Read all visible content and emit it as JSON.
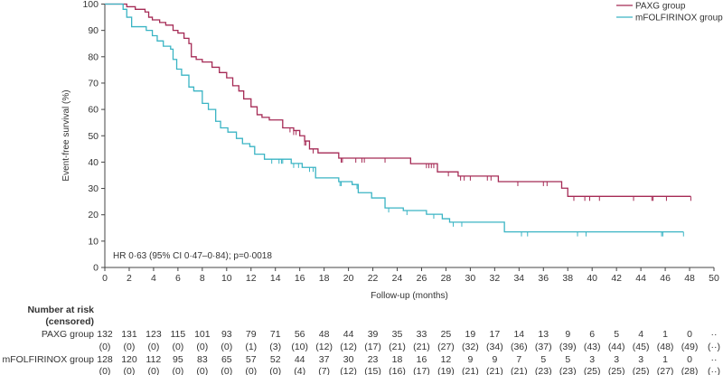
{
  "chart_data": {
    "type": "line",
    "subtype": "kaplan-meier",
    "xlabel": "Follow-up (months)",
    "ylabel": "Event-free survival (%)",
    "xlim": [
      0,
      50
    ],
    "ylim": [
      0,
      100
    ],
    "xticks": [
      0,
      2,
      4,
      6,
      8,
      10,
      12,
      14,
      16,
      18,
      20,
      22,
      24,
      26,
      28,
      30,
      32,
      34,
      36,
      38,
      40,
      42,
      44,
      46,
      48,
      50
    ],
    "yticks": [
      0,
      10,
      20,
      30,
      40,
      50,
      60,
      70,
      80,
      90,
      100
    ],
    "grid": false,
    "legend_position": "top-right",
    "annotation": "HR 0·63 (95% CI 0·47–0·84); p=0·0018",
    "series": [
      {
        "name": "PAXG group",
        "color": "#a52a55",
        "steps": [
          [
            1.8,
            99
          ],
          [
            2.5,
            98
          ],
          [
            3.3,
            97
          ],
          [
            3.6,
            95
          ],
          [
            3.9,
            94
          ],
          [
            4.5,
            93
          ],
          [
            5,
            92
          ],
          [
            5.6,
            90
          ],
          [
            6,
            89
          ],
          [
            6.5,
            87
          ],
          [
            6.9,
            85
          ],
          [
            7.1,
            80
          ],
          [
            7.5,
            79
          ],
          [
            8,
            78
          ],
          [
            8.8,
            76
          ],
          [
            9.4,
            74
          ],
          [
            10,
            72
          ],
          [
            10.5,
            69
          ],
          [
            11,
            67
          ],
          [
            11.4,
            64
          ],
          [
            12,
            61
          ],
          [
            12.5,
            58
          ],
          [
            12.9,
            57
          ],
          [
            13.5,
            56
          ],
          [
            14.6,
            53
          ],
          [
            15.5,
            52
          ],
          [
            16,
            50
          ],
          [
            16.4,
            48
          ],
          [
            16.8,
            45
          ],
          [
            17.5,
            43.5
          ],
          [
            19.2,
            41.5
          ],
          [
            25.1,
            39.4
          ],
          [
            27.3,
            36.3
          ],
          [
            29,
            34.7
          ],
          [
            32.3,
            32.6
          ],
          [
            37.5,
            30.1
          ],
          [
            38,
            27
          ]
        ],
        "end": 48.1,
        "censored": [
          15.2,
          15.5,
          15.7,
          16.4,
          16.5,
          17.1,
          19.4,
          19.5,
          20.6,
          21.1,
          21.3,
          23,
          26.4,
          26.6,
          26.8,
          27.0,
          28.2,
          29.2,
          29.5,
          30,
          31.4,
          31.7,
          33.9,
          36,
          36.3,
          38.5,
          39.4,
          39.8,
          40.6,
          43.4,
          44.9,
          45,
          46.1,
          48.1
        ]
      },
      {
        "name": "mFOLFIRINOX group",
        "color": "#3ab4c4",
        "steps": [
          [
            1.5,
            98
          ],
          [
            1.8,
            95
          ],
          [
            2.2,
            91.4
          ],
          [
            3.4,
            90
          ],
          [
            3.9,
            88
          ],
          [
            4.3,
            86
          ],
          [
            4.8,
            84
          ],
          [
            5.4,
            82.9
          ],
          [
            5.6,
            79
          ],
          [
            5.9,
            75.3
          ],
          [
            6.3,
            73
          ],
          [
            6.9,
            68.5
          ],
          [
            7.3,
            67
          ],
          [
            8,
            62.3
          ],
          [
            8.5,
            60
          ],
          [
            9.1,
            55.5
          ],
          [
            9.5,
            53
          ],
          [
            10.1,
            51.4
          ],
          [
            10.8,
            49
          ],
          [
            11.3,
            47
          ],
          [
            11.9,
            45.9
          ],
          [
            12.3,
            43
          ],
          [
            13.1,
            41.1
          ],
          [
            15.3,
            39.5
          ],
          [
            16.2,
            38
          ],
          [
            17.3,
            34
          ],
          [
            19.2,
            32.6
          ],
          [
            20.3,
            31.5
          ],
          [
            20.8,
            28.4
          ],
          [
            21.9,
            26.4
          ],
          [
            23,
            22.6
          ],
          [
            24.5,
            21.6
          ],
          [
            26.4,
            20.2
          ],
          [
            27.7,
            18.5
          ],
          [
            28.3,
            17.2
          ],
          [
            32.8,
            13.5
          ]
        ],
        "end": 47.5,
        "censored": [
          13.7,
          14.3,
          14.5,
          14.6,
          15.5,
          15.9,
          16.8,
          17.1,
          19.3,
          19.4,
          20.7,
          23.3,
          24.8,
          27,
          28.6,
          29.3,
          34.2,
          34.7,
          38.8,
          39.5,
          45.7,
          45.8,
          47.5
        ]
      }
    ],
    "risk_table": {
      "title": "Number at risk",
      "subtitle": "(censored)",
      "rows": [
        {
          "label": "PAXG group",
          "at_risk": [
            "132",
            "131",
            "123",
            "115",
            "101",
            "93",
            "79",
            "71",
            "56",
            "48",
            "44",
            "39",
            "35",
            "33",
            "25",
            "19",
            "17",
            "14",
            "13",
            "9",
            "6",
            "5",
            "4",
            "1",
            "0",
            "··"
          ],
          "censored": [
            "(0)",
            "(0)",
            "(0)",
            "(0)",
            "(0)",
            "(0)",
            "(1)",
            "(3)",
            "(10)",
            "(12)",
            "(12)",
            "(17)",
            "(21)",
            "(21)",
            "(27)",
            "(32)",
            "(34)",
            "(36)",
            "(37)",
            "(39)",
            "(43)",
            "(44)",
            "(45)",
            "(48)",
            "(49)",
            "(··)"
          ]
        },
        {
          "label": "mFOLFIRINOX group",
          "at_risk": [
            "128",
            "120",
            "112",
            "95",
            "83",
            "65",
            "57",
            "52",
            "44",
            "37",
            "30",
            "23",
            "18",
            "16",
            "12",
            "9",
            "9",
            "7",
            "5",
            "5",
            "3",
            "3",
            "3",
            "1",
            "0",
            "··"
          ],
          "censored": [
            "(0)",
            "(0)",
            "(0)",
            "(0)",
            "(0)",
            "(0)",
            "(0)",
            "(0)",
            "(4)",
            "(7)",
            "(12)",
            "(15)",
            "(16)",
            "(17)",
            "(19)",
            "(21)",
            "(21)",
            "(21)",
            "(23)",
            "(23)",
            "(25)",
            "(25)",
            "(25)",
            "(27)",
            "(28)",
            "(··)"
          ]
        }
      ]
    }
  }
}
